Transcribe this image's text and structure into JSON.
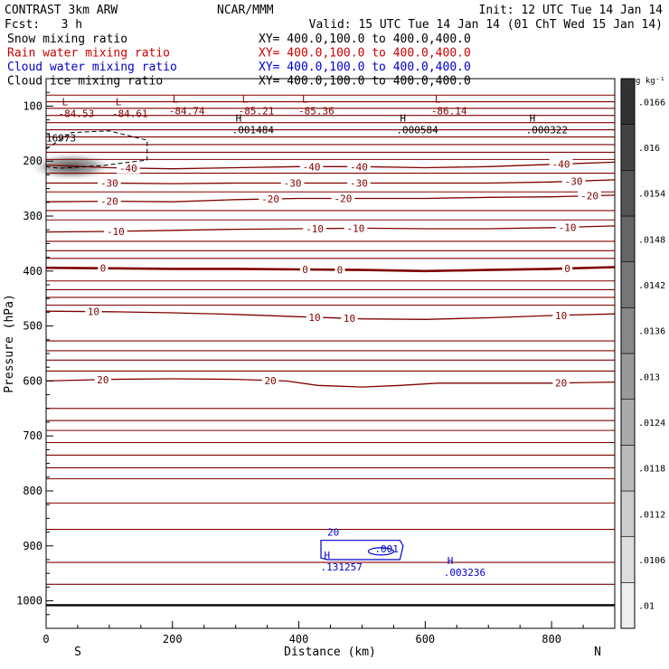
{
  "header": {
    "left_line1": "CONTRAST  3km ARW",
    "center_line1": "NCAR/MMM",
    "right_line1": "Init: 12 UTC Tue 14 Jan 14",
    "left_line2": "Fcst:   3 h",
    "right_line2": "Valid: 15 UTC Tue 14 Jan 14 (01 ChT Wed 15 Jan 14)"
  },
  "fields": [
    {
      "label": "Snow mixing ratio",
      "xy": "XY= 400.0,100.0 to 400.0,400.0",
      "color": "#000000"
    },
    {
      "label": "Rain water mixing ratio",
      "xy": "XY= 400.0,100.0 to 400.0,400.0",
      "color": "#cc0000"
    },
    {
      "label": "Cloud water mixing ratio",
      "xy": "XY= 400.0,100.0 to 400.0,400.0",
      "color": "#0000cc"
    },
    {
      "label": "Cloud ice mixing ratio",
      "xy": "XY= 400.0,100.0 to 400.0,400.0",
      "color": "#000000"
    }
  ],
  "colors": {
    "temperature": "#800000",
    "cloud_water": "#0000cc",
    "frame": "#000000"
  },
  "chart_data": {
    "type": "contour-cross-section",
    "xlabel": "Distance (km)",
    "ylabel": "Pressure (hPa)",
    "xlim": [
      0,
      900
    ],
    "ylim": [
      1050,
      50
    ],
    "xticks": [
      0,
      200,
      400,
      600,
      800
    ],
    "xtick_labels": [
      "0",
      "200",
      "400",
      "600",
      "800"
    ],
    "yticks": [
      100,
      200,
      300,
      400,
      500,
      600,
      700,
      800,
      900,
      1000
    ],
    "ytick_labels": [
      "100",
      "200",
      "300",
      "400",
      "500",
      "600",
      "700",
      "800",
      "900",
      "1000"
    ],
    "end_labels": {
      "left": "S",
      "right": "N"
    },
    "colorbar": {
      "unit": "g kg⁻¹",
      "levels": [
        0.01,
        0.0106,
        0.0112,
        0.0118,
        0.0124,
        0.013,
        0.0136,
        0.0142,
        0.0148,
        0.0154,
        0.016,
        0.0166
      ],
      "tick_labels": [
        ".01",
        ".0106",
        ".0112",
        ".0118",
        ".0124",
        ".013",
        ".0136",
        ".0142",
        ".0148",
        ".0154",
        ".016",
        ".0166"
      ]
    },
    "temperature_contours": [
      {
        "level": -40,
        "label": "-40",
        "points": [
          [
            0,
            207
          ],
          [
            100,
            212
          ],
          [
            200,
            214
          ],
          [
            300,
            212
          ],
          [
            400,
            210
          ],
          [
            500,
            210
          ],
          [
            600,
            212
          ],
          [
            700,
            210
          ],
          [
            800,
            206
          ],
          [
            900,
            202
          ]
        ]
      },
      {
        "level": -30,
        "label": "-30",
        "points": [
          [
            0,
            240
          ],
          [
            100,
            240
          ],
          [
            200,
            241
          ],
          [
            300,
            240
          ],
          [
            400,
            240
          ],
          [
            500,
            240
          ],
          [
            600,
            240
          ],
          [
            700,
            240
          ],
          [
            800,
            238
          ],
          [
            900,
            234
          ]
        ]
      },
      {
        "level": -20,
        "label": "-20",
        "points": [
          [
            0,
            274
          ],
          [
            100,
            273
          ],
          [
            200,
            274
          ],
          [
            300,
            270
          ],
          [
            400,
            268
          ],
          [
            500,
            268
          ],
          [
            600,
            268
          ],
          [
            700,
            266
          ],
          [
            800,
            265
          ],
          [
            900,
            262
          ]
        ]
      },
      {
        "level": -10,
        "label": "-10",
        "points": [
          [
            0,
            329
          ],
          [
            100,
            328
          ],
          [
            200,
            326
          ],
          [
            300,
            324
          ],
          [
            400,
            323
          ],
          [
            500,
            322
          ],
          [
            600,
            323
          ],
          [
            700,
            323
          ],
          [
            800,
            321
          ],
          [
            900,
            318
          ]
        ]
      },
      {
        "level": 0,
        "label": "0",
        "thick": true,
        "points": [
          [
            0,
            394
          ],
          [
            100,
            395
          ],
          [
            200,
            396
          ],
          [
            300,
            396
          ],
          [
            400,
            397
          ],
          [
            500,
            398
          ],
          [
            600,
            400
          ],
          [
            700,
            398
          ],
          [
            800,
            396
          ],
          [
            900,
            393
          ]
        ]
      },
      {
        "level": 10,
        "label": "10",
        "points": [
          [
            0,
            473
          ],
          [
            100,
            474
          ],
          [
            200,
            476
          ],
          [
            300,
            479
          ],
          [
            400,
            483
          ],
          [
            500,
            487
          ],
          [
            600,
            488
          ],
          [
            700,
            485
          ],
          [
            800,
            481
          ],
          [
            900,
            478
          ]
        ]
      },
      {
        "level": 20,
        "label": "20",
        "points": [
          [
            0,
            600
          ],
          [
            100,
            597
          ],
          [
            200,
            596
          ],
          [
            300,
            597
          ],
          [
            380,
            600
          ],
          [
            430,
            608
          ],
          [
            500,
            611
          ],
          [
            560,
            608
          ],
          [
            620,
            604
          ],
          [
            700,
            604
          ],
          [
            800,
            604
          ],
          [
            900,
            602
          ]
        ]
      }
    ],
    "contour_labels": [
      {
        "text": "-40",
        "x": 130,
        "level": -40
      },
      {
        "text": "-40",
        "x": 420,
        "level": -40
      },
      {
        "text": "-40",
        "x": 495,
        "level": -40
      },
      {
        "text": "-40",
        "x": 815,
        "level": -40
      },
      {
        "text": "-30",
        "x": 100,
        "level": -30
      },
      {
        "text": "-30",
        "x": 390,
        "level": -30
      },
      {
        "text": "-30",
        "x": 495,
        "level": -30
      },
      {
        "text": "-30",
        "x": 835,
        "level": -30
      },
      {
        "text": "-20",
        "x": 100,
        "level": -20
      },
      {
        "text": "-20",
        "x": 355,
        "level": -20
      },
      {
        "text": "-20",
        "x": 470,
        "level": -20
      },
      {
        "text": "-20",
        "x": 860,
        "level": -20
      },
      {
        "text": "-10",
        "x": 110,
        "level": -10
      },
      {
        "text": "-10",
        "x": 425,
        "level": -10
      },
      {
        "text": "-10",
        "x": 490,
        "level": -10
      },
      {
        "text": "-10",
        "x": 825,
        "level": -10
      },
      {
        "text": "0",
        "x": 90,
        "level": 0
      },
      {
        "text": "0",
        "x": 410,
        "level": 0
      },
      {
        "text": "0",
        "x": 465,
        "level": 0
      },
      {
        "text": "0",
        "x": 825,
        "level": 0
      },
      {
        "text": "10",
        "x": 75,
        "level": 10
      },
      {
        "text": "10",
        "x": 425,
        "level": 10
      },
      {
        "text": "10",
        "x": 480,
        "level": 10
      },
      {
        "text": "10",
        "x": 815,
        "level": 10
      },
      {
        "text": "20",
        "x": 90,
        "level": 20
      },
      {
        "text": "20",
        "x": 355,
        "level": 20
      },
      {
        "text": "20",
        "x": 815,
        "level": 20
      }
    ],
    "upper_isolines": [
      80,
      92,
      104,
      117,
      130,
      143,
      156,
      170,
      184,
      197,
      222,
      256,
      290,
      307,
      346,
      363,
      377,
      418,
      434,
      448,
      462,
      527,
      545,
      562,
      582,
      650,
      672,
      690,
      712,
      735,
      758,
      778,
      822,
      870,
      930,
      970
    ],
    "surface_pressure": 1008,
    "extrema": [
      {
        "type": "L",
        "value": "-84.53",
        "x": 25,
        "p": 110
      },
      {
        "type": "L",
        "value": "-84.61",
        "x": 110,
        "p": 110
      },
      {
        "type": "L",
        "value": "-84.74",
        "x": 200,
        "p": 105
      },
      {
        "type": "L",
        "value": "-85.21",
        "x": 310,
        "p": 105
      },
      {
        "type": "L",
        "value": "-85.36",
        "x": 405,
        "p": 105
      },
      {
        "type": "L",
        "value": "-86.14",
        "x": 615,
        "p": 105
      },
      {
        "type": "H",
        "value": ".001484",
        "x": 300,
        "p": 140
      },
      {
        "type": "H",
        "value": ".000584",
        "x": 560,
        "p": 140
      },
      {
        "type": "H",
        "value": ".000322",
        "x": 765,
        "p": 140
      },
      {
        "type": "H",
        "value": ".131257",
        "x": 440,
        "p": 935
      },
      {
        "type": "H",
        "value": ".003236",
        "x": 635,
        "p": 945
      }
    ],
    "extra_labels": [
      {
        "text": "16973",
        "x": 0,
        "p": 197
      },
      {
        "text": ".001",
        "x": 520,
        "p": 945
      },
      {
        "text": "20",
        "x": 445,
        "p": 914
      }
    ],
    "snow_shading": {
      "x_center": 40,
      "p_center": 210,
      "peak_gkg": 0.016
    },
    "cloud_ice_dashed": [
      [
        0,
        178
      ],
      [
        40,
        148
      ],
      [
        100,
        145
      ],
      [
        160,
        162
      ],
      [
        160,
        198
      ],
      [
        90,
        208
      ],
      [
        20,
        213
      ],
      [
        0,
        210
      ]
    ],
    "cloud_water_contour": [
      [
        445,
        890
      ],
      [
        435,
        890
      ],
      [
        435,
        922
      ],
      [
        445,
        925
      ],
      [
        560,
        925
      ],
      [
        565,
        900
      ],
      [
        560,
        890
      ],
      [
        445,
        890
      ]
    ]
  }
}
